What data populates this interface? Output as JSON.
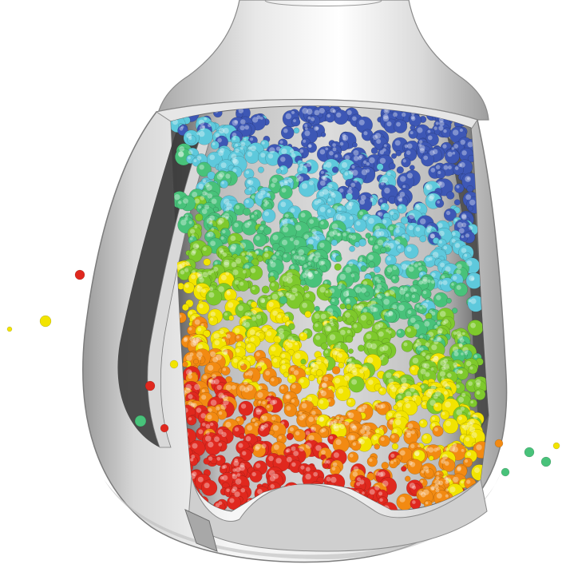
{
  "scene": {
    "subject": "vessel-cutaway-with-particles",
    "colors": {
      "background": "#ffffff",
      "shell_light": "#f2f2f2",
      "shell_mid": "#c9c9c9",
      "shell_dark": "#8e8e8e",
      "interior_dark": "#3c3c3c",
      "particle_palette": [
        "#3d57b5",
        "#5ec9dc",
        "#48c27a",
        "#7ec92c",
        "#f2e400",
        "#f28a12",
        "#e0281e"
      ]
    }
  }
}
